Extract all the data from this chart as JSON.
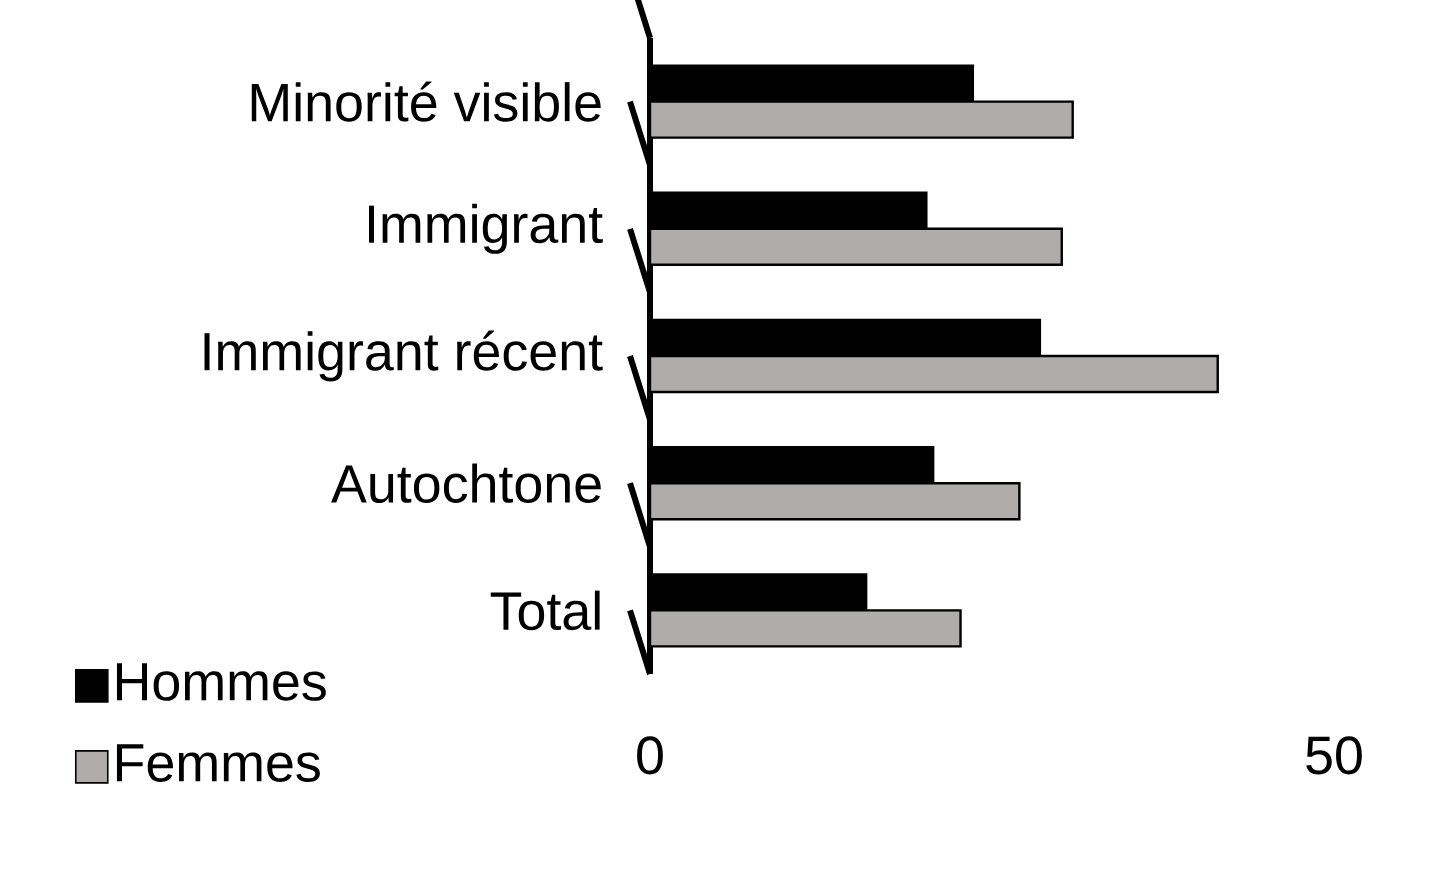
{
  "chart_data": {
    "type": "bar",
    "orientation": "horizontal",
    "categories": [
      "Minorité visible",
      "Immigrant",
      "Immigrant récent",
      "Autochtone",
      "Total"
    ],
    "series": [
      {
        "name": "Hommes",
        "color": "#000000",
        "values": [
          23.6,
          20.2,
          28.5,
          20.7,
          15.8
        ]
      },
      {
        "name": "Femmes",
        "color": "#b0acab",
        "values": [
          30.9,
          30.1,
          41.5,
          27.0,
          22.7
        ]
      }
    ],
    "xlim": [
      0,
      50
    ],
    "xticks": [
      0,
      50
    ],
    "grid": false,
    "legend": "bottom left"
  }
}
